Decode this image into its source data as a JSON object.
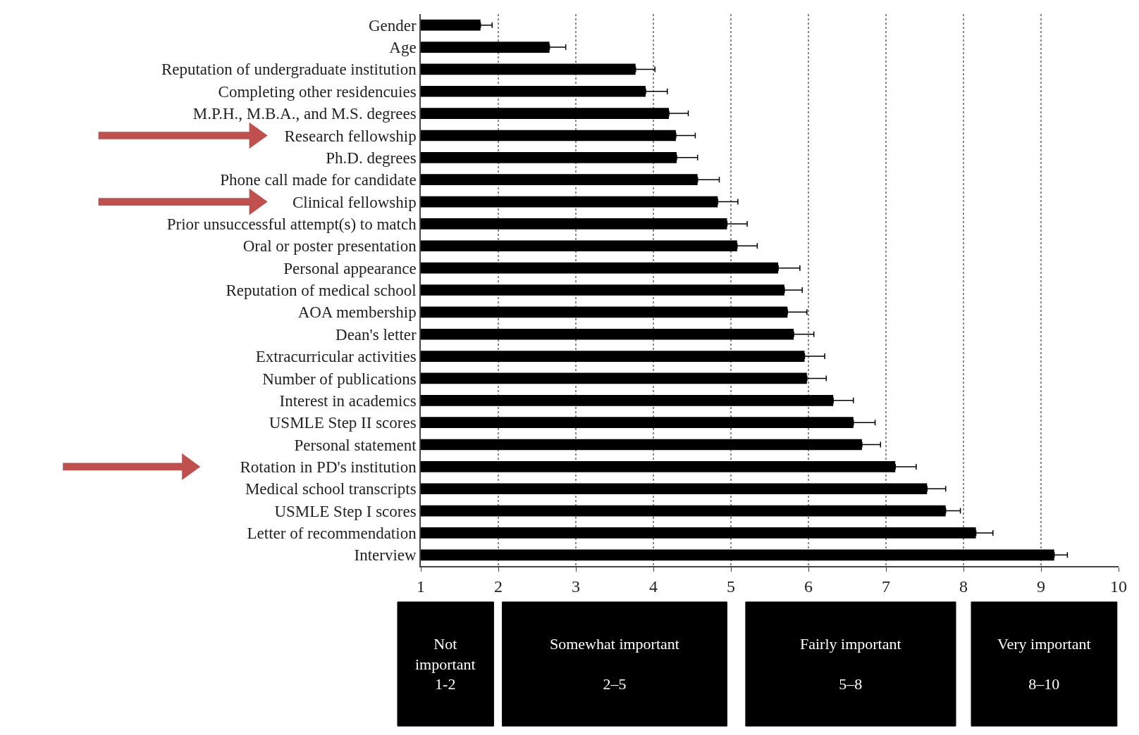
{
  "chart_data": {
    "type": "bar",
    "orientation": "horizontal",
    "categories": [
      "Gender",
      "Age",
      "Reputation of undergraduate institution",
      "Completing other residencuies",
      "M.P.H., M.B.A., and M.S. degrees",
      "Research fellowship",
      "Ph.D. degrees",
      "Phone call made for candidate",
      "Clinical fellowship",
      "Prior unsuccessful attempt(s) to match",
      "Oral or poster presentation",
      "Personal appearance",
      "Reputation of medical school",
      "AOA membership",
      "Dean's letter",
      "Extracurricular activities",
      "Number of publications",
      "Interest in academics",
      "USMLE Step II scores",
      "Personal statement",
      "Rotation in PD's institution",
      "Medical school transcripts",
      "USMLE Step I scores",
      "Letter of recommendation",
      "Interview"
    ],
    "values": [
      1.77,
      2.66,
      3.77,
      3.9,
      4.2,
      4.29,
      4.3,
      4.57,
      4.83,
      4.95,
      5.08,
      5.61,
      5.69,
      5.73,
      5.81,
      5.95,
      5.98,
      6.32,
      6.58,
      6.69,
      7.12,
      7.53,
      7.77,
      8.16,
      9.17
    ],
    "errors": [
      [
        1.77,
        1.92
      ],
      [
        2.66,
        2.87
      ],
      [
        3.77,
        4.02
      ],
      [
        3.9,
        4.18
      ],
      [
        4.2,
        4.45
      ],
      [
        4.29,
        4.54
      ],
      [
        4.3,
        4.57
      ],
      [
        4.57,
        4.85
      ],
      [
        4.83,
        5.09
      ],
      [
        4.95,
        5.21
      ],
      [
        5.08,
        5.34
      ],
      [
        5.61,
        5.89
      ],
      [
        5.69,
        5.92
      ],
      [
        5.73,
        5.98
      ],
      [
        5.81,
        6.07
      ],
      [
        5.95,
        6.21
      ],
      [
        5.98,
        6.23
      ],
      [
        6.32,
        6.58
      ],
      [
        6.58,
        6.86
      ],
      [
        6.69,
        6.93
      ],
      [
        7.12,
        7.39
      ],
      [
        7.53,
        7.77
      ],
      [
        7.77,
        7.96
      ],
      [
        8.16,
        8.38
      ],
      [
        9.17,
        9.34
      ]
    ],
    "color": "#000000",
    "xlim": [
      1,
      10
    ],
    "xticks": [
      1,
      2,
      3,
      4,
      5,
      6,
      7,
      8,
      9,
      10
    ],
    "grid": "x",
    "annotations": [
      "Not important\n1-2",
      "Somewhat important\n2–5",
      "Fairly important\n5–8",
      "Very important\n8–10"
    ]
  }
}
